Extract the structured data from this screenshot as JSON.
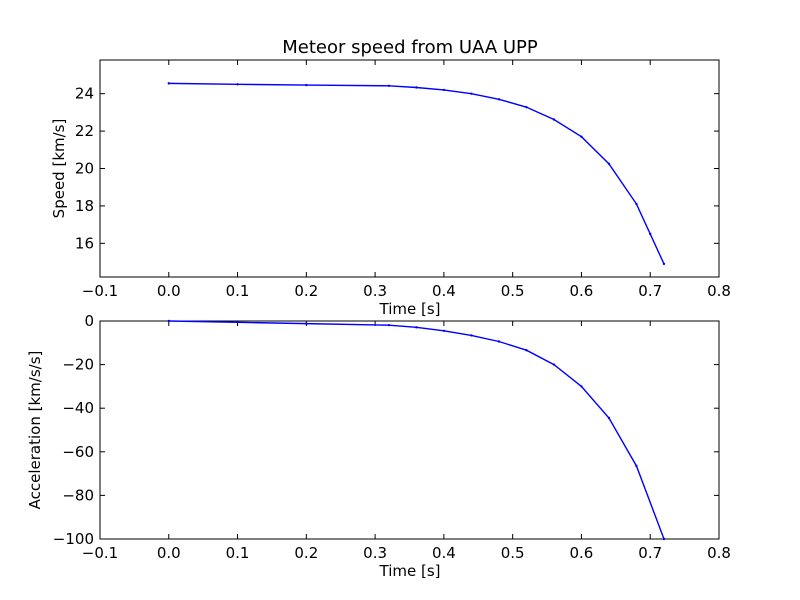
{
  "chart_data": [
    {
      "type": "line",
      "title": "Meteor speed from  UAA UPP",
      "xlabel": "Time [s]",
      "ylabel": "Speed [km/s]",
      "xlim": [
        -0.1,
        0.8
      ],
      "ylim": [
        14.2,
        25.8
      ],
      "xticks": [
        -0.1,
        0.0,
        0.1,
        0.2,
        0.3,
        0.4,
        0.5,
        0.6,
        0.7,
        0.8
      ],
      "xtick_labels": [
        "−0.1",
        "0.0",
        "0.1",
        "0.2",
        "0.3",
        "0.4",
        "0.5",
        "0.6",
        "0.7",
        "0.8"
      ],
      "yticks": [
        16,
        18,
        20,
        22,
        24
      ],
      "ytick_labels": [
        "16",
        "18",
        "20",
        "22",
        "24"
      ],
      "grid": false,
      "series_color": "#0000ff",
      "series": [
        {
          "x": [
            0.0,
            0.1,
            0.2,
            0.32,
            0.36,
            0.4,
            0.44,
            0.48,
            0.52,
            0.56,
            0.6,
            0.64,
            0.68,
            0.7,
            0.72
          ],
          "y": [
            24.55,
            24.5,
            24.46,
            24.42,
            24.33,
            24.2,
            24.0,
            23.7,
            23.28,
            22.62,
            21.7,
            20.25,
            18.1,
            16.5,
            14.9
          ]
        }
      ]
    },
    {
      "type": "line",
      "title": "",
      "xlabel": "Time [s]",
      "ylabel": "Acceleration [km/s/s]",
      "xlim": [
        -0.1,
        0.8
      ],
      "ylim": [
        -100,
        0
      ],
      "xticks": [
        -0.1,
        0.0,
        0.1,
        0.2,
        0.3,
        0.4,
        0.5,
        0.6,
        0.7,
        0.8
      ],
      "xtick_labels": [
        "−0.1",
        "0.0",
        "0.1",
        "0.2",
        "0.3",
        "0.4",
        "0.5",
        "0.6",
        "0.7",
        "0.8"
      ],
      "yticks": [
        -100,
        -80,
        -60,
        -40,
        -20,
        0
      ],
      "ytick_labels": [
        "−100",
        "−80",
        "−60",
        "−40",
        "−20",
        "0"
      ],
      "grid": false,
      "series_color": "#0000ff",
      "series": [
        {
          "x": [
            0.0,
            0.1,
            0.2,
            0.32,
            0.36,
            0.4,
            0.44,
            0.48,
            0.52,
            0.56,
            0.6,
            0.64,
            0.68,
            0.72
          ],
          "y": [
            0.0,
            -0.6,
            -1.2,
            -1.9,
            -2.9,
            -4.5,
            -6.6,
            -9.4,
            -13.4,
            -20.0,
            -30.0,
            -44.5,
            -66.5,
            -100.0
          ]
        }
      ]
    }
  ]
}
